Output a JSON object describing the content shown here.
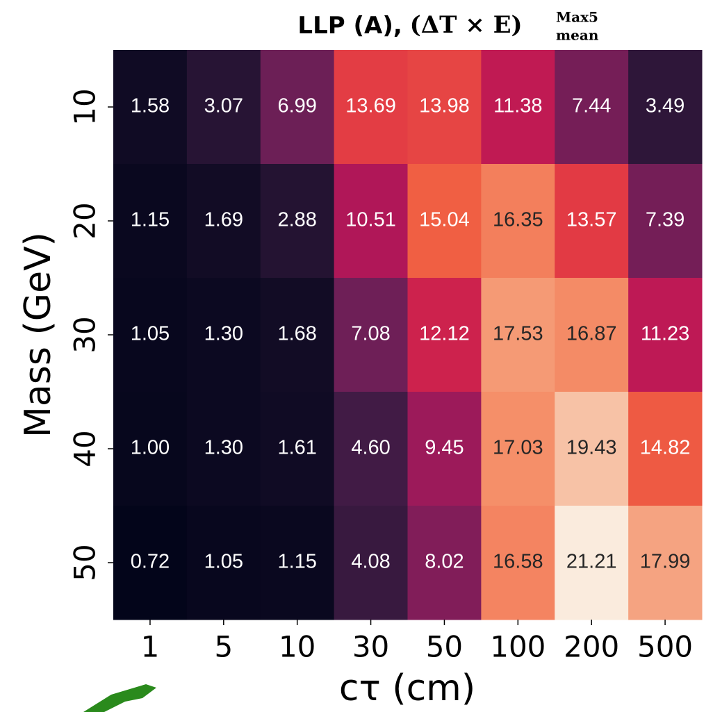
{
  "chart_data": {
    "type": "heatmap",
    "title": "LLP (A),",
    "title_math": "(ΔT × E)",
    "title_superscript": "Max5",
    "title_subscript": "mean",
    "x_label": "cτ (cm)",
    "y_label": "Mass (GeV)",
    "x_categories": [
      "1",
      "5",
      "10",
      "30",
      "50",
      "100",
      "200",
      "500"
    ],
    "y_categories": [
      "10",
      "20",
      "30",
      "40",
      "50"
    ],
    "values": [
      [
        1.58,
        3.07,
        6.99,
        13.69,
        13.98,
        11.38,
        7.44,
        3.49
      ],
      [
        1.15,
        1.69,
        2.88,
        10.51,
        15.04,
        16.35,
        13.57,
        7.39
      ],
      [
        1.05,
        1.3,
        1.68,
        7.08,
        12.12,
        17.53,
        16.87,
        11.23
      ],
      [
        1.0,
        1.3,
        1.61,
        4.6,
        9.45,
        17.03,
        19.43,
        14.82
      ],
      [
        0.72,
        1.05,
        1.15,
        4.08,
        8.02,
        16.58,
        21.21,
        17.99
      ]
    ],
    "value_labels": [
      [
        "1.58",
        "3.07",
        "6.99",
        "13.69",
        "13.98",
        "11.38",
        "7.44",
        "3.49"
      ],
      [
        "1.15",
        "1.69",
        "2.88",
        "10.51",
        "15.04",
        "16.35",
        "13.57",
        "7.39"
      ],
      [
        "1.05",
        "1.30",
        "1.68",
        "7.08",
        "12.12",
        "17.53",
        "16.87",
        "11.23"
      ],
      [
        "1.00",
        "1.30",
        "1.61",
        "4.60",
        "9.45",
        "17.03",
        "19.43",
        "14.82"
      ],
      [
        "0.72",
        "1.05",
        "1.15",
        "4.08",
        "8.02",
        "16.58",
        "21.21",
        "17.99"
      ]
    ],
    "colormap": [
      "#03051a",
      "#221331",
      "#451c47",
      "#6a1f56",
      "#921c5b",
      "#b91657",
      "#dd2c45",
      "#f06043",
      "#f5916b",
      "#f6bc9e",
      "#faebdd"
    ]
  }
}
